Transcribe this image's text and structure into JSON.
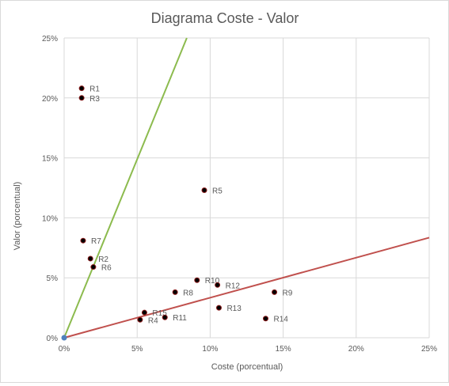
{
  "chart_data": {
    "type": "scatter",
    "title": "Diagrama Coste - Valor",
    "xlabel": "Coste (porcentual)",
    "ylabel": "Valor (porcentual)",
    "xlim": [
      0,
      25
    ],
    "ylim": [
      0,
      25
    ],
    "x_ticks": [
      0,
      5,
      10,
      15,
      20,
      25
    ],
    "y_ticks": [
      0,
      5,
      10,
      15,
      20,
      25
    ],
    "x_tick_labels": [
      "0%",
      "5%",
      "10%",
      "15%",
      "20%",
      "25%"
    ],
    "y_tick_labels": [
      "0%",
      "5%",
      "10%",
      "15%",
      "20%",
      "25%"
    ],
    "grid": true,
    "legend": "none",
    "points": [
      {
        "label": "R1",
        "x": 1.2,
        "y": 20.8
      },
      {
        "label": "R3",
        "x": 1.2,
        "y": 20.0
      },
      {
        "label": "R5",
        "x": 9.6,
        "y": 12.3
      },
      {
        "label": "R7",
        "x": 1.3,
        "y": 8.1
      },
      {
        "label": "R2",
        "x": 1.8,
        "y": 6.6
      },
      {
        "label": "R6",
        "x": 2.0,
        "y": 5.9
      },
      {
        "label": "R10",
        "x": 9.1,
        "y": 4.8
      },
      {
        "label": "R12",
        "x": 10.5,
        "y": 4.4
      },
      {
        "label": "R8",
        "x": 7.6,
        "y": 3.8
      },
      {
        "label": "R9",
        "x": 14.4,
        "y": 3.8
      },
      {
        "label": "R13",
        "x": 10.6,
        "y": 2.5
      },
      {
        "label": "R15",
        "x": 5.5,
        "y": 2.1
      },
      {
        "label": "R11",
        "x": 6.9,
        "y": 1.7
      },
      {
        "label": "R4",
        "x": 5.2,
        "y": 1.5
      },
      {
        "label": "R14",
        "x": 13.8,
        "y": 1.6
      }
    ],
    "origin_point": {
      "x": 0,
      "y": 0
    },
    "reference_lines": [
      {
        "color": "#8cbb4e",
        "x1": 0,
        "y1": 0,
        "x2": 8.4,
        "y2": 25
      },
      {
        "color": "#c0504d",
        "x1": 0,
        "y1": 0,
        "x2": 25,
        "y2": 8.35
      }
    ],
    "colors": {
      "point_fill": "#000000",
      "point_stroke": "#8b1a1a",
      "origin_fill": "#4f81bd",
      "grid": "#d9d9d9",
      "text": "#595959",
      "title": "#595959"
    }
  }
}
